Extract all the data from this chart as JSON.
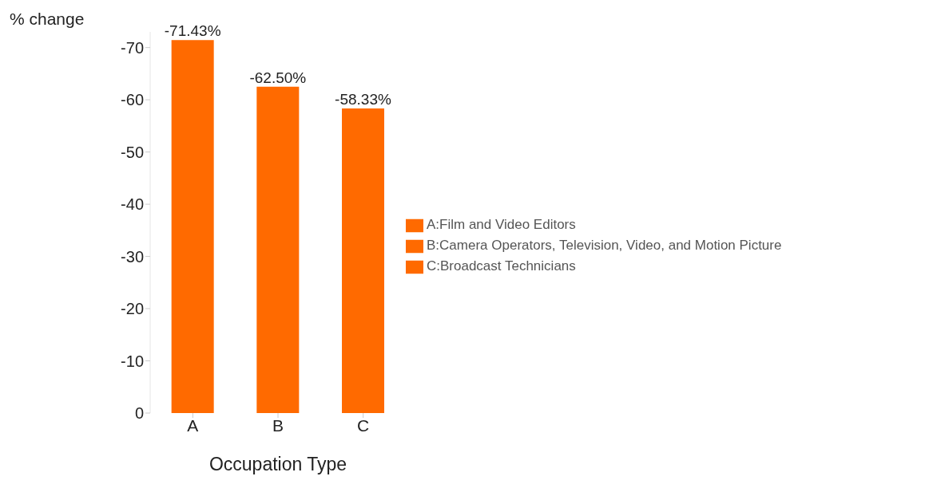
{
  "chart_data": {
    "type": "bar",
    "xlabel": "Occupation Type",
    "ylabel": "% change",
    "categories": [
      "A",
      "B",
      "C"
    ],
    "series": [
      {
        "name": "A:Film and Video Editors",
        "color": "#ff6a00",
        "values": [
          -71.43,
          null,
          null
        ],
        "value_labels": [
          "-71.43%",
          null,
          null
        ]
      },
      {
        "name": "B:Camera Operators, Television, Video, and Motion Picture",
        "color": "#ff6a00",
        "values": [
          null,
          -62.5,
          null
        ],
        "value_labels": [
          null,
          "-62.50%",
          null
        ]
      },
      {
        "name": "C:Broadcast Technicians",
        "color": "#ff6a00",
        "values": [
          null,
          null,
          -58.33
        ],
        "value_labels": [
          null,
          null,
          "-58.33%"
        ]
      }
    ],
    "stacked": true,
    "ylim": [
      0,
      -73
    ],
    "yticks": [
      0,
      -10,
      -20,
      -30,
      -40,
      -50,
      -60,
      -70
    ],
    "legend": "right"
  }
}
